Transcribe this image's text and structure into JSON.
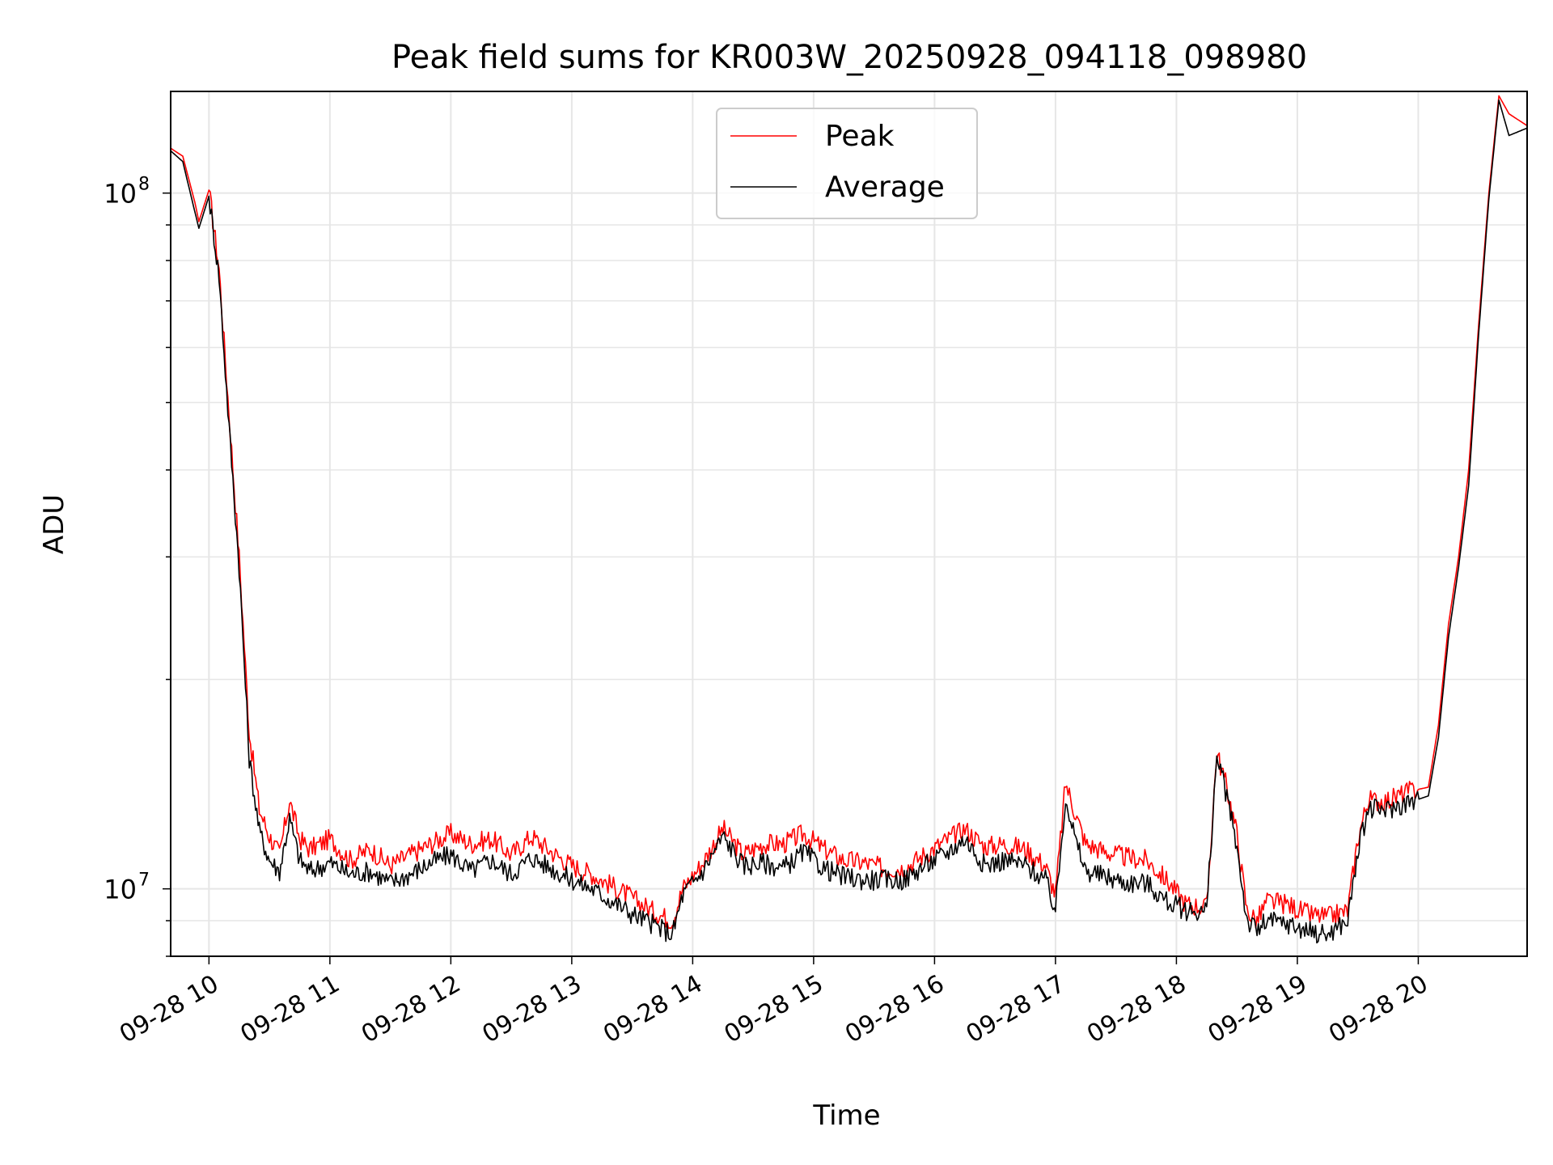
{
  "chart_data": {
    "type": "line",
    "title": "Peak field sums for KR003W_20250928_094118_098980",
    "xlabel": "Time",
    "ylabel": "ADU",
    "yscale": "log",
    "ylim": [
      8000000,
      140000000
    ],
    "xlim": [
      "2025-09-28 09:41",
      "2025-09-28 20:54"
    ],
    "grid": true,
    "legend_position": "upper center",
    "x_tick_labels": [
      "09-28 10",
      "09-28 11",
      "09-28 12",
      "09-28 13",
      "09-28 14",
      "09-28 15",
      "09-28 16",
      "09-28 17",
      "09-28 18",
      "09-28 19",
      "09-28 20"
    ],
    "y_tick_labels": [
      {
        "base": "10",
        "exp": "8",
        "value": 100000000
      },
      {
        "base": "10",
        "exp": "7",
        "value": 10000000
      }
    ],
    "x": [
      "2025-09-28 09:41",
      "2025-09-28 09:47",
      "2025-09-28 09:53",
      "2025-09-28 09:55",
      "2025-09-28 10:00",
      "2025-09-28 10:05",
      "2025-09-28 10:10",
      "2025-09-28 10:15",
      "2025-09-28 10:20",
      "2025-09-28 10:25",
      "2025-09-28 10:30",
      "2025-09-28 10:35",
      "2025-09-28 10:40",
      "2025-09-28 10:45",
      "2025-09-28 10:50",
      "2025-09-28 11:00",
      "2025-09-28 11:10",
      "2025-09-28 11:20",
      "2025-09-28 11:30",
      "2025-09-28 11:40",
      "2025-09-28 11:50",
      "2025-09-28 12:00",
      "2025-09-28 12:10",
      "2025-09-28 12:20",
      "2025-09-28 12:30",
      "2025-09-28 12:40",
      "2025-09-28 12:50",
      "2025-09-28 13:00",
      "2025-09-28 13:10",
      "2025-09-28 13:20",
      "2025-09-28 13:30",
      "2025-09-28 13:40",
      "2025-09-28 13:50",
      "2025-09-28 13:55",
      "2025-09-28 14:05",
      "2025-09-28 14:15",
      "2025-09-28 14:25",
      "2025-09-28 14:35",
      "2025-09-28 14:45",
      "2025-09-28 14:55",
      "2025-09-28 15:05",
      "2025-09-28 15:15",
      "2025-09-28 15:25",
      "2025-09-28 15:35",
      "2025-09-28 15:45",
      "2025-09-28 15:55",
      "2025-09-28 16:05",
      "2025-09-28 16:15",
      "2025-09-28 16:25",
      "2025-09-28 16:35",
      "2025-09-28 16:45",
      "2025-09-28 16:55",
      "2025-09-28 17:00",
      "2025-09-28 17:05",
      "2025-09-28 17:10",
      "2025-09-28 17:15",
      "2025-09-28 17:25",
      "2025-09-28 17:35",
      "2025-09-28 17:45",
      "2025-09-28 17:55",
      "2025-09-28 18:05",
      "2025-09-28 18:15",
      "2025-09-28 18:20",
      "2025-09-28 18:25",
      "2025-09-28 18:30",
      "2025-09-28 18:35",
      "2025-09-28 18:40",
      "2025-09-28 18:45",
      "2025-09-28 18:55",
      "2025-09-28 19:05",
      "2025-09-28 19:15",
      "2025-09-28 19:25",
      "2025-09-28 19:30",
      "2025-09-28 19:35",
      "2025-09-28 19:45",
      "2025-09-28 19:55",
      "2025-09-28 20:05",
      "2025-09-28 20:10",
      "2025-09-28 20:15",
      "2025-09-28 20:20",
      "2025-09-28 20:25",
      "2025-09-28 20:30",
      "2025-09-28 20:35",
      "2025-09-28 20:40",
      "2025-09-28 20:45",
      "2025-09-28 20:54"
    ],
    "series": [
      {
        "name": "Peak",
        "color": "#ff0000",
        "values": [
          116000000,
          113000000,
          97000000,
          91000000,
          101000000,
          78000000,
          48000000,
          30000000,
          16800000,
          13000000,
          11900000,
          11200000,
          13400000,
          11800000,
          11400000,
          11800000,
          11000000,
          11400000,
          10800000,
          11200000,
          11600000,
          12000000,
          11600000,
          11800000,
          11200000,
          11900000,
          11300000,
          10800000,
          10500000,
          10100000,
          9700000,
          9300000,
          9000000,
          10000000,
          10900000,
          12200000,
          11200000,
          11600000,
          11600000,
          12000000,
          11400000,
          11000000,
          10900000,
          10700000,
          10700000,
          11200000,
          11700000,
          12200000,
          11500000,
          11600000,
          11400000,
          10800000,
          9800000,
          14200000,
          12800000,
          11600000,
          11300000,
          11100000,
          11000000,
          10300000,
          9500000,
          9400000,
          15700000,
          14000000,
          12000000,
          9300000,
          9000000,
          9600000,
          9500000,
          9200000,
          9100000,
          9300000,
          11800000,
          13400000,
          13400000,
          13800000,
          14000000,
          17200000,
          24000000,
          30000000,
          40000000,
          65000000,
          100000000,
          138000000,
          130000000,
          125000000
        ]
      },
      {
        "name": "Average",
        "color": "#000000",
        "values": [
          115000000,
          111000000,
          94000000,
          89000000,
          99000000,
          76000000,
          46000000,
          29000000,
          15400000,
          12100000,
          11000000,
          10600000,
          12600000,
          11000000,
          10600000,
          10900000,
          10500000,
          10600000,
          10200000,
          10500000,
          10900000,
          11200000,
          10600000,
          11000000,
          10500000,
          11100000,
          10700000,
          10300000,
          10000000,
          9600000,
          9200000,
          8900000,
          8600000,
          9800000,
          10600000,
          11900000,
          10800000,
          10900000,
          10700000,
          11300000,
          10700000,
          10400000,
          10300000,
          10300000,
          10300000,
          10800000,
          11200000,
          11800000,
          10800000,
          11000000,
          10800000,
          10300000,
          9300000,
          13600000,
          11700000,
          10600000,
          10400000,
          10200000,
          10200000,
          9600000,
          9300000,
          9300000,
          15500000,
          13600000,
          11500000,
          9000000,
          8700000,
          9000000,
          8900000,
          8700000,
          8600000,
          9000000,
          11300000,
          13000000,
          13000000,
          13300000,
          13600000,
          16500000,
          23000000,
          29000000,
          38000000,
          63000000,
          98000000,
          136000000,
          121000000,
          124000000
        ]
      }
    ]
  }
}
